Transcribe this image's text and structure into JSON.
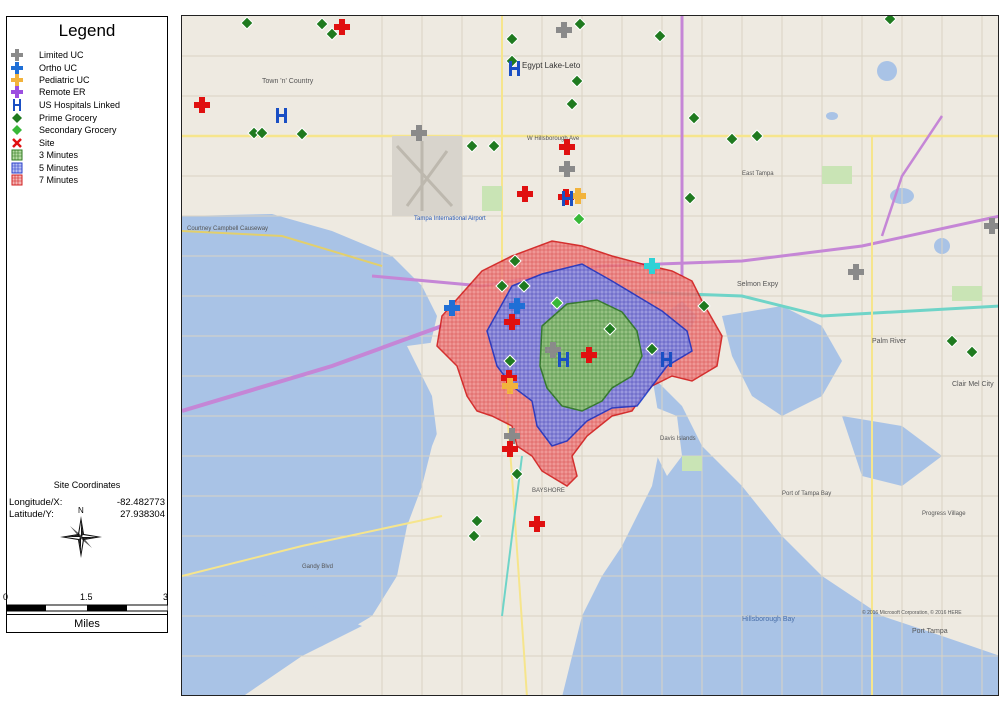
{
  "legend": {
    "title": "Legend",
    "items": [
      {
        "label": "Limited UC",
        "icon": "gray-cross-icon",
        "color": "#8a8a8a"
      },
      {
        "label": "Ortho UC",
        "icon": "blue-cross-icon",
        "color": "#1f6fd6"
      },
      {
        "label": "Pediatric UC",
        "icon": "orange-cross-icon",
        "color": "#f2b33c"
      },
      {
        "label": "Remote ER",
        "icon": "purple-cross-icon",
        "color": "#9c4fe0"
      },
      {
        "label": "US Hospitals Linked",
        "icon": "hospital-h-icon",
        "color": "#1a4fc4"
      },
      {
        "label": "Prime Grocery",
        "icon": "dark-green-diamond-icon",
        "color": "#1f7a1f"
      },
      {
        "label": "Secondary Grocery",
        "icon": "light-green-diamond-icon",
        "color": "#38b838"
      },
      {
        "label": "Site",
        "icon": "red-x-icon",
        "color": "#e01010"
      },
      {
        "label": "3 Minutes",
        "icon": "green-hatch-icon",
        "color": "#4a9a2a"
      },
      {
        "label": "5 Minutes",
        "icon": "blue-hatch-icon",
        "color": "#3a4fd8"
      },
      {
        "label": "7 Minutes",
        "icon": "red-hatch-icon",
        "color": "#e03030"
      }
    ]
  },
  "site_coordinates": {
    "title": "Site Coordinates",
    "longitude_label": "Longitude/X:",
    "longitude": "-82.482773",
    "latitude_label": "Latitude/Y:",
    "latitude": "27.938304"
  },
  "north_label": "N",
  "scale": {
    "ticks": [
      "0",
      "1.5",
      "3"
    ],
    "units": "Miles"
  },
  "map_labels": {
    "lake": "Egypt Lake-Leto",
    "town": "Town 'n' Country",
    "airport": "Tampa International Airport",
    "bay": "Hillsborough Bay",
    "palm_river": "Palm River",
    "clair_mel": "Clair Mel City",
    "selmon": "Selmon Expy",
    "hillsborough_ave": "W Hillsborough Ave",
    "courtney": "Courtney Campbell Causeway",
    "port_tampa": "Port of Tampa Bay",
    "east_tampa": "East Tampa",
    "gandy": "Gandy Blvd",
    "davis": "Davis Islands",
    "bayshore": "BAYSHORE",
    "progress": "Progress Village",
    "port_label": "Port Tampa",
    "copyright": "© 2016 Microsoft Corporation, © 2016 HERE"
  },
  "colors": {
    "water": "#a9c3e6",
    "land": "#eeeae1",
    "highway_purple": "#c586d6",
    "highway_teal": "#6fd4c8",
    "zone7": "#ef6a6a",
    "zone5": "#5b6ee0",
    "zone3": "#5fb04a"
  }
}
